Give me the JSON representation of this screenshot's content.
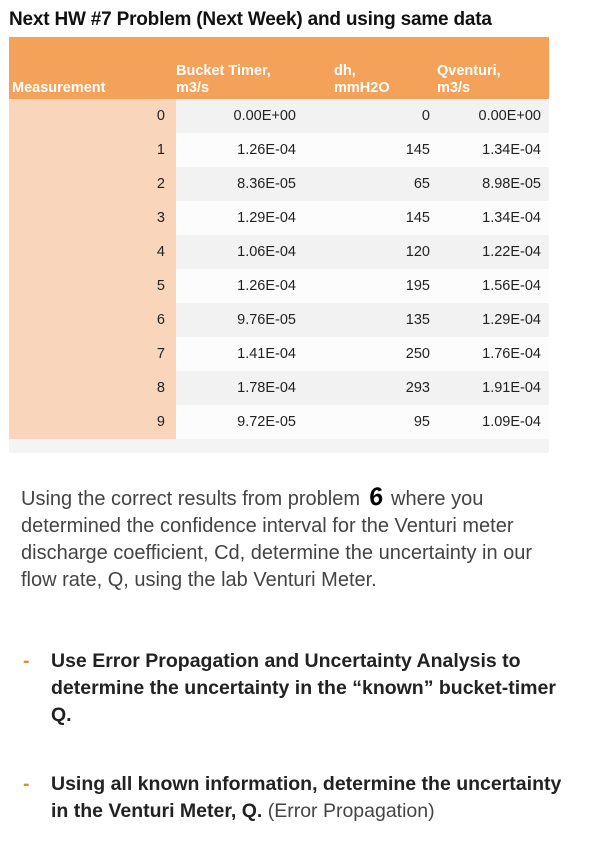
{
  "title": "Next HW #7 Problem (Next Week) and using same data",
  "table": {
    "headers": {
      "measurement": "Measurement",
      "bucket_line1": "Bucket Timer,",
      "bucket_line2": "m3/s",
      "dh_line1": "dh,",
      "dh_line2": "mmH2O",
      "qventuri_line1": "Qventuri,",
      "qventuri_line2": "m3/s"
    },
    "rows": [
      {
        "m": "0",
        "bucket": "0.00E+00",
        "dh": "0",
        "qv": "0.00E+00"
      },
      {
        "m": "1",
        "bucket": "1.26E-04",
        "dh": "145",
        "qv": "1.34E-04"
      },
      {
        "m": "2",
        "bucket": "8.36E-05",
        "dh": "65",
        "qv": "8.98E-05"
      },
      {
        "m": "3",
        "bucket": "1.29E-04",
        "dh": "145",
        "qv": "1.34E-04"
      },
      {
        "m": "4",
        "bucket": "1.06E-04",
        "dh": "120",
        "qv": "1.22E-04"
      },
      {
        "m": "5",
        "bucket": "1.26E-04",
        "dh": "195",
        "qv": "1.56E-04"
      },
      {
        "m": "6",
        "bucket": "9.76E-05",
        "dh": "135",
        "qv": "1.29E-04"
      },
      {
        "m": "7",
        "bucket": "1.41E-04",
        "dh": "250",
        "qv": "1.76E-04"
      },
      {
        "m": "8",
        "bucket": "1.78E-04",
        "dh": "293",
        "qv": "1.91E-04"
      },
      {
        "m": "9",
        "bucket": "9.72E-05",
        "dh": "95",
        "qv": "1.09E-04"
      }
    ]
  },
  "paragraph": {
    "part1": "Using the correct results from problem",
    "handwritten_number": "6",
    "part2": "where you determined the confidence interval for the Venturi meter discharge coefficient, Cd, determine the uncertainty in our flow rate, Q, using the lab Venturi Meter."
  },
  "bullets": [
    {
      "marker": "-",
      "bold": "Use Error Propagation and Uncertainty Analysis to determine the uncertainty in the “known” bucket-timer Q.",
      "normal": ""
    },
    {
      "marker": "-",
      "bold": "Using all known information, determine the uncertainty in the Venturi Meter, Q.",
      "normal": " (Error Propagation)"
    }
  ],
  "colors": {
    "header": "#f4a25a",
    "first_column": "#f8d5bb",
    "bullet_marker": "#d98b3a"
  }
}
